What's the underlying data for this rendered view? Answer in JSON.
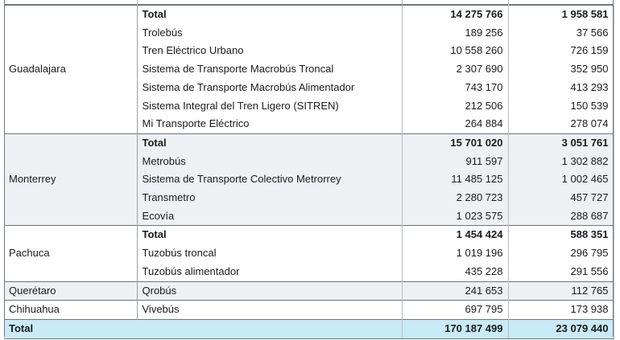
{
  "groups": [
    {
      "city": "Guadalajara",
      "shaded": false,
      "rows": [
        {
          "system": "Total",
          "v1": "14 275 766",
          "v2": "1 958 581",
          "total": true
        },
        {
          "system": "Trolebús",
          "v1": "189 256",
          "v2": "37 566"
        },
        {
          "system": "Tren Eléctrico Urbano",
          "v1": "10 558 260",
          "v2": "726 159"
        },
        {
          "system": "Sistema de Transporte Macrobús Troncal",
          "v1": "2 307 690",
          "v2": "352 950"
        },
        {
          "system": "Sistema de Transporte Macrobús Alimentador",
          "v1": "743 170",
          "v2": "413 293"
        },
        {
          "system": "Sistema Integral del Tren Ligero (SITREN)",
          "v1": "212 506",
          "v2": "150 539"
        },
        {
          "system": "Mi Transporte Eléctrico",
          "v1": "264 884",
          "v2": "278 074"
        }
      ]
    },
    {
      "city": "Monterrey",
      "shaded": true,
      "rows": [
        {
          "system": "Total",
          "v1": "15 701 020",
          "v2": "3 051 761",
          "total": true
        },
        {
          "system": "Metrobús",
          "v1": "911 597",
          "v2": "1 302 882"
        },
        {
          "system": "Sistema de Transporte Colectivo Metrorrey",
          "v1": "11 485 125",
          "v2": "1 002 465"
        },
        {
          "system": "Transmetro",
          "v1": "2 280 723",
          "v2": "457 727"
        },
        {
          "system": "Ecovía",
          "v1": "1 023 575",
          "v2": "288 687"
        }
      ]
    },
    {
      "city": "Pachuca",
      "shaded": false,
      "rows": [
        {
          "system": "Total",
          "v1": "1 454 424",
          "v2": "588 351",
          "total": true
        },
        {
          "system": "Tuzobús troncal",
          "v1": "1 019 196",
          "v2": "296 795"
        },
        {
          "system": "Tuzobús alimentador",
          "v1": "435 228",
          "v2": "291 556"
        }
      ]
    },
    {
      "city": "Querétaro",
      "shaded": true,
      "rows": [
        {
          "system": "Qrobús",
          "v1": "241 653",
          "v2": "112 765"
        }
      ]
    },
    {
      "city": "Chihuahua",
      "shaded": false,
      "rows": [
        {
          "system": "Vivebús",
          "v1": "697 795",
          "v2": "173 938"
        }
      ]
    }
  ],
  "grand_total": {
    "label": "Total",
    "v1": "170 187 499",
    "v2": "23 079 440"
  }
}
